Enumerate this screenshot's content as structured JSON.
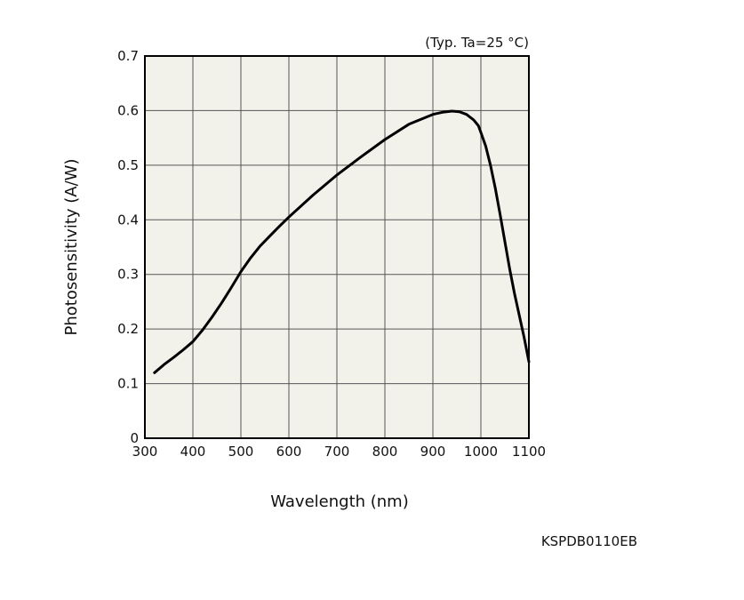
{
  "chart_data": {
    "type": "line",
    "title": "",
    "annotation": "(Typ. Ta=25 °C)",
    "xlabel": "Wavelength (nm)",
    "ylabel": "Photosensitivity (A/W)",
    "xlim": [
      300,
      1100
    ],
    "ylim": [
      0,
      0.7
    ],
    "x_ticks": [
      300,
      400,
      500,
      600,
      700,
      800,
      900,
      1000,
      1100
    ],
    "y_ticks": [
      0,
      0.1,
      0.2,
      0.3,
      0.4,
      0.5,
      0.6,
      0.7
    ],
    "y_tick_labels": [
      "0",
      "0.1",
      "0.2",
      "0.3",
      "0.4",
      "0.5",
      "0.6",
      "0.7"
    ],
    "grid": true,
    "plot_background": "#f3f2ea",
    "line_color": "#000000",
    "series": [
      {
        "x": [
          320,
          340,
          360,
          380,
          400,
          420,
          440,
          460,
          480,
          500,
          520,
          540,
          560,
          580,
          600,
          650,
          700,
          750,
          800,
          850,
          900,
          920,
          940,
          955,
          970,
          985,
          995,
          1000,
          1010,
          1020,
          1030,
          1040,
          1050,
          1060,
          1070,
          1080,
          1090,
          1100
        ],
        "y": [
          0.12,
          0.135,
          0.148,
          0.162,
          0.177,
          0.198,
          0.222,
          0.248,
          0.276,
          0.305,
          0.33,
          0.352,
          0.37,
          0.388,
          0.405,
          0.445,
          0.482,
          0.515,
          0.547,
          0.575,
          0.593,
          0.597,
          0.599,
          0.598,
          0.593,
          0.583,
          0.572,
          0.56,
          0.535,
          0.5,
          0.458,
          0.41,
          0.36,
          0.31,
          0.265,
          0.225,
          0.185,
          0.14
        ]
      }
    ]
  },
  "footer": {
    "code": "KSPDB0110EB"
  }
}
